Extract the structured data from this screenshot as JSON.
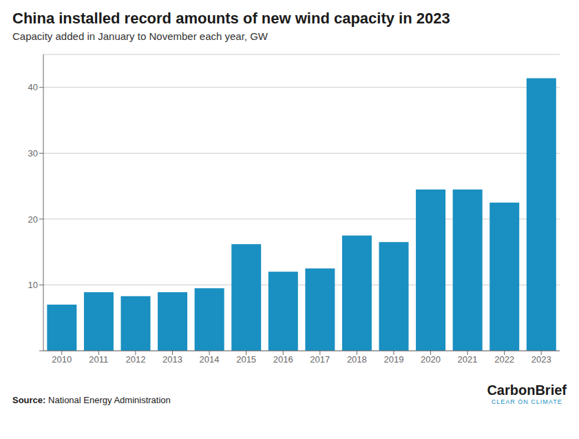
{
  "chart_data": {
    "type": "bar",
    "title": "China installed record amounts of new wind capacity in 2023",
    "subtitle": "Capacity added in January to November each year, GW",
    "annotations": [
      "Source: National Energy Administration",
      "CarbonBrief",
      "CLEAR ON CLIMATE"
    ],
    "categories": [
      "2010",
      "2011",
      "2012",
      "2013",
      "2014",
      "2015",
      "2016",
      "2017",
      "2018",
      "2019",
      "2020",
      "2021",
      "2022",
      "2023"
    ],
    "values": [
      7.0,
      8.9,
      8.3,
      8.9,
      9.5,
      16.2,
      12.0,
      12.5,
      17.5,
      16.5,
      24.5,
      24.5,
      22.5,
      41.4
    ],
    "color": "#1a8fc1",
    "ylim": [
      0,
      45
    ],
    "yticks": [
      {
        "value": 0,
        "label": ""
      },
      10,
      20,
      30,
      40
    ],
    "grid": true
  }
}
